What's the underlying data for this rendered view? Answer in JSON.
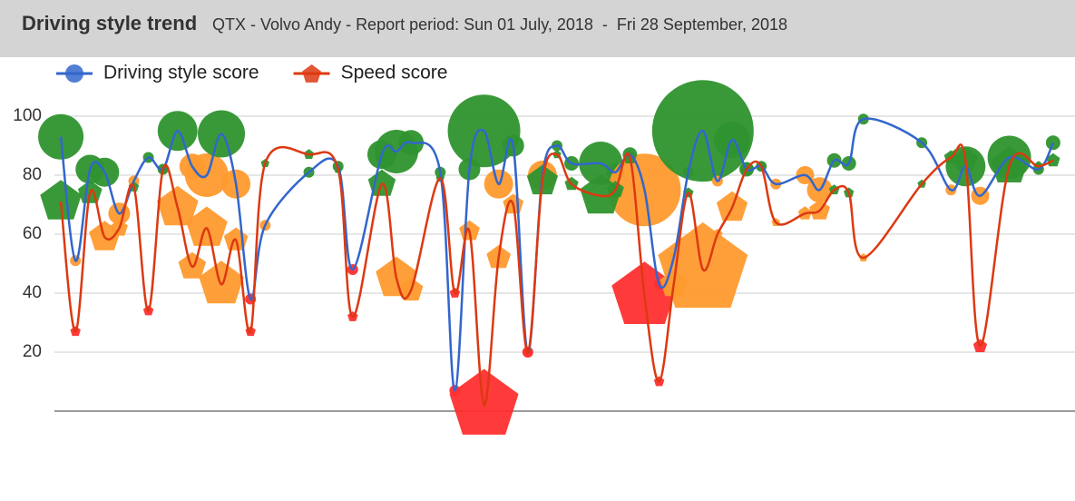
{
  "chart_data": {
    "type": "bubble-line",
    "title": "Driving style trend",
    "subtitle": "QTX - Volvo Andy - Report period: Sun 01 July, 2018  -  Fri 28 September, 2018",
    "x": [
      1,
      2,
      3,
      4,
      5,
      6,
      7,
      8,
      9,
      10,
      11,
      12,
      13,
      14,
      15,
      18,
      20,
      21,
      23,
      24,
      25,
      27,
      28,
      29,
      30,
      31,
      32,
      33,
      34,
      35,
      36,
      38,
      39,
      40,
      41,
      42,
      43,
      44,
      45,
      46,
      47,
      48,
      49,
      50,
      52,
      53,
      54,
      55,
      56,
      60,
      62,
      63,
      64,
      66,
      68,
      69
    ],
    "xlim": [
      0,
      70.5
    ],
    "ylim": [
      0,
      100
    ],
    "yticks": [
      20,
      40,
      60,
      80,
      100
    ],
    "grid": true,
    "legend": "top",
    "series": [
      {
        "name": "Driving style score",
        "color": "#3366cc",
        "marker": "circle",
        "values": [
          93,
          51,
          82,
          81,
          67,
          78,
          86,
          82,
          95,
          83,
          80,
          94,
          77,
          38,
          63,
          81,
          83,
          48,
          87,
          88,
          91,
          81,
          7,
          82,
          95,
          77,
          90,
          20,
          80,
          90,
          84,
          84,
          81,
          87,
          75,
          43,
          52,
          81,
          95,
          78,
          92,
          82,
          83,
          77,
          80,
          75,
          85,
          84,
          99,
          91,
          75,
          83,
          73,
          86,
          82,
          91
        ],
        "sizes": [
          25,
          6,
          16,
          16,
          12,
          6,
          6,
          6,
          22,
          14,
          24,
          26,
          16,
          6,
          6,
          6,
          6,
          6,
          16,
          24,
          14,
          6,
          6,
          12,
          40,
          16,
          12,
          6,
          16,
          6,
          8,
          24,
          10,
          8,
          40,
          6,
          6,
          6,
          56,
          6,
          20,
          8,
          6,
          6,
          10,
          14,
          8,
          8,
          6,
          6,
          6,
          22,
          10,
          24,
          6,
          8
        ],
        "point_colors": [
          "#2e932e",
          "#ff9a2e",
          "#2e932e",
          "#2e932e",
          "#ff9a2e",
          "#ff9a2e",
          "#2e932e",
          "#2e932e",
          "#2e932e",
          "#ff9a2e",
          "#ff9a2e",
          "#2e932e",
          "#ff9a2e",
          "#ff2f2f",
          "#ff9a2e",
          "#2e932e",
          "#2e932e",
          "#ff2f2f",
          "#2e932e",
          "#2e932e",
          "#2e932e",
          "#2e932e",
          "#ff2f2f",
          "#2e932e",
          "#2e932e",
          "#ff9a2e",
          "#2e932e",
          "#ff2f2f",
          "#ff9a2e",
          "#2e932e",
          "#2e932e",
          "#2e932e",
          "#2e932e",
          "#2e932e",
          "#ff9a2e",
          "#ff2f2f",
          "#ff9a2e",
          "#2e932e",
          "#2e932e",
          "#ff9a2e",
          "#2e932e",
          "#2e932e",
          "#2e932e",
          "#ff9a2e",
          "#ff9a2e",
          "#ff9a2e",
          "#2e932e",
          "#2e932e",
          "#2e932e",
          "#2e932e",
          "#ff9a2e",
          "#2e932e",
          "#ff9a2e",
          "#2e932e",
          "#2e932e",
          "#2e932e"
        ]
      },
      {
        "name": "Speed score",
        "color": "#dc3912",
        "marker": "pentagon",
        "values": [
          71,
          27,
          74,
          59,
          62,
          76,
          34,
          82,
          69,
          49,
          62,
          43,
          58,
          27,
          84,
          87,
          82,
          32,
          77,
          45,
          41,
          79,
          40,
          61,
          2,
          52,
          70,
          20,
          78,
          87,
          77,
          73,
          75,
          86,
          39,
          10,
          43,
          74,
          48,
          60,
          69,
          82,
          83,
          64,
          67,
          68,
          75,
          74,
          52,
          77,
          86,
          85,
          22,
          83,
          83,
          85
        ],
        "sizes": [
          24,
          6,
          14,
          18,
          10,
          6,
          6,
          5,
          24,
          16,
          24,
          26,
          14,
          6,
          5,
          6,
          5,
          6,
          16,
          24,
          14,
          5,
          6,
          12,
          40,
          14,
          12,
          6,
          18,
          5,
          8,
          24,
          10,
          8,
          38,
          6,
          16,
          6,
          52,
          6,
          18,
          8,
          5,
          5,
          8,
          12,
          6,
          6,
          5,
          5,
          8,
          14,
          8,
          22,
          6,
          8
        ],
        "point_colors": [
          "#2e932e",
          "#ff2f2f",
          "#2e932e",
          "#ff9a2e",
          "#ff9a2e",
          "#2e932e",
          "#ff2f2f",
          "#2e932e",
          "#ff9a2e",
          "#ff9a2e",
          "#ff9a2e",
          "#ff9a2e",
          "#ff9a2e",
          "#ff2f2f",
          "#2e932e",
          "#2e932e",
          "#2e932e",
          "#ff2f2f",
          "#2e932e",
          "#ff9a2e",
          "#ff9a2e",
          "#2e932e",
          "#ff2f2f",
          "#ff9a2e",
          "#ff2f2f",
          "#ff9a2e",
          "#ff9a2e",
          "#ff2f2f",
          "#2e932e",
          "#2e932e",
          "#2e932e",
          "#2e932e",
          "#2e932e",
          "#2e932e",
          "#ff2f2f",
          "#ff2f2f",
          "#ff9a2e",
          "#2e932e",
          "#ff9a2e",
          "#ff9a2e",
          "#ff9a2e",
          "#2e932e",
          "#2e932e",
          "#ff9a2e",
          "#ff9a2e",
          "#ff9a2e",
          "#2e932e",
          "#2e932e",
          "#ff9a2e",
          "#2e932e",
          "#2e932e",
          "#2e932e",
          "#ff2f2f",
          "#2e932e",
          "#2e932e",
          "#2e932e"
        ]
      }
    ]
  }
}
